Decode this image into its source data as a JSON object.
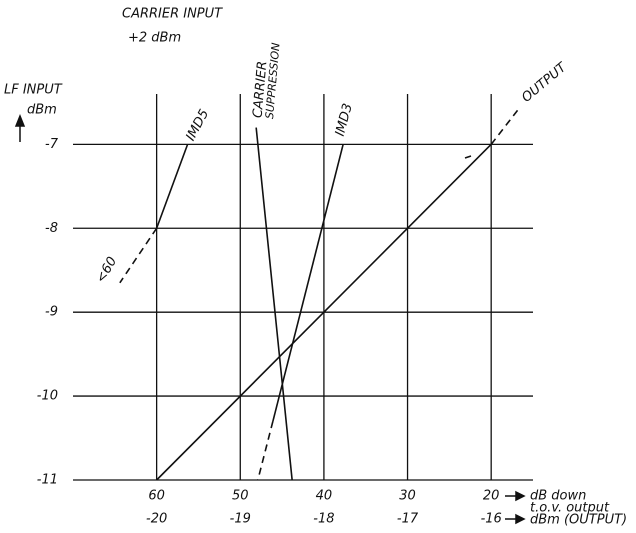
{
  "chart_data": {
    "type": "line",
    "title": "CARRIER INPUT",
    "subtitle": "+2 dBm",
    "y_label": [
      "LF INPUT",
      "dBm"
    ],
    "x_label": [
      "dB down",
      "t.o.v. output"
    ],
    "x2_label": "dBm (OUTPUT)",
    "xlim": [
      70,
      15
    ],
    "xticks": [
      60,
      50,
      40,
      30,
      20
    ],
    "x2lim": [
      -21,
      -15.5
    ],
    "x2ticks": [
      -20,
      -19,
      -18,
      -17,
      -16
    ],
    "ylim": [
      -11,
      -6.4
    ],
    "yticks": [
      -7,
      -8,
      -9,
      -10,
      -11
    ],
    "grid": true,
    "color": "#111111",
    "series": [
      {
        "label": [
          "IMD5"
        ],
        "segments": [
          {
            "style": "solid",
            "x": [
              60,
              56.3
            ],
            "values": [
              -8,
              -7
            ]
          },
          {
            "style": "dashed",
            "x": [
              60,
              64.4
            ],
            "values": [
              -8,
              -8.65
            ]
          }
        ]
      },
      {
        "label": [
          "CARRIER",
          "SUPPRESSION"
        ],
        "segments": [
          {
            "style": "solid",
            "x": [
              48.1,
              43.8
            ],
            "values": [
              -6.8,
              -11
            ]
          }
        ]
      },
      {
        "label": [
          "IMD3"
        ],
        "segments": [
          {
            "style": "solid",
            "x": [
              37.7,
              46.1
            ],
            "values": [
              -7,
              -10.3
            ]
          },
          {
            "style": "dashed",
            "x": [
              46.1,
              47.9
            ],
            "values": [
              -10.3,
              -11
            ]
          }
        ]
      },
      {
        "label": [
          "OUTPUT"
        ],
        "segments": [
          {
            "style": "solid",
            "x": [
              60,
              20
            ],
            "values": [
              -11,
              -7
            ]
          },
          {
            "style": "dashed",
            "x": [
              20,
              16.5
            ],
            "values": [
              -7,
              -6.55
            ]
          }
        ]
      }
    ],
    "annotations": [
      {
        "text": "<60"
      }
    ]
  }
}
